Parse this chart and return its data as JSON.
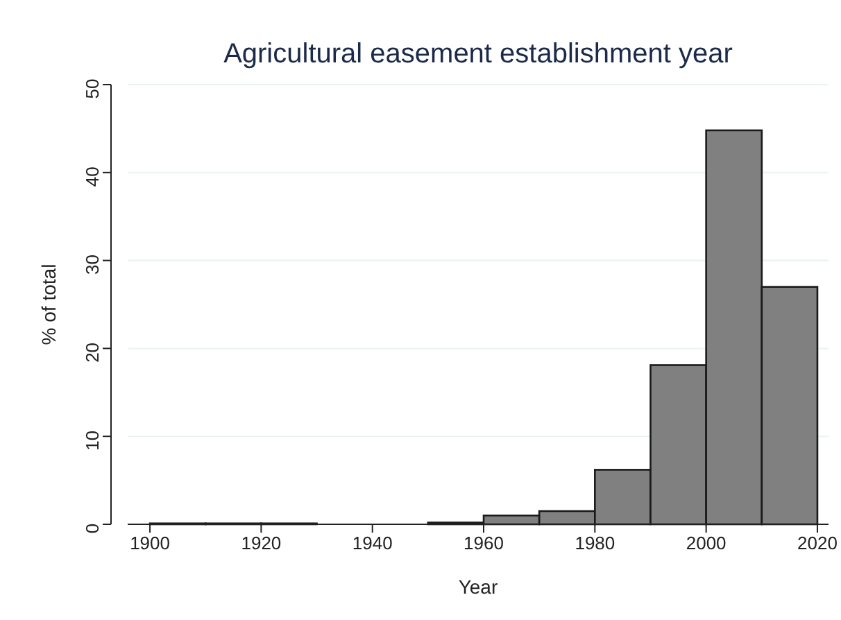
{
  "chart_data": {
    "type": "histogram",
    "title": "Agricultural easement establishment year",
    "xlabel": "Year",
    "ylabel": "% of total",
    "bins": [
      1900,
      1910,
      1920,
      1930,
      1940,
      1950,
      1960,
      1970,
      1980,
      1990,
      2000,
      2010,
      2020
    ],
    "values": [
      0.1,
      0.1,
      0.1,
      0,
      0,
      0.2,
      1.0,
      1.5,
      6.2,
      18.1,
      44.8,
      27.0
    ],
    "color": "#808080",
    "xlim": [
      1896,
      2022
    ],
    "xticks": [
      1900,
      1920,
      1940,
      1960,
      1980,
      2000,
      2020
    ],
    "ylim": [
      0,
      50
    ],
    "yticks": [
      0,
      10,
      20,
      30,
      40,
      50
    ],
    "grid": "y"
  }
}
